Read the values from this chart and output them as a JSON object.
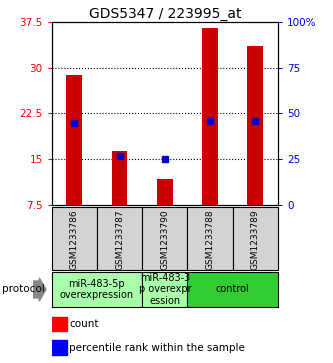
{
  "title": "GDS5347 / 223995_at",
  "samples": [
    "GSM1233786",
    "GSM1233787",
    "GSM1233790",
    "GSM1233788",
    "GSM1233789"
  ],
  "count_values": [
    28.8,
    16.3,
    11.8,
    36.5,
    33.5
  ],
  "percentile_values": [
    45.0,
    27.0,
    25.0,
    46.0,
    46.0
  ],
  "ylim_left": [
    7.5,
    37.5
  ],
  "ylim_right": [
    0,
    100
  ],
  "yticks_left": [
    7.5,
    15.0,
    22.5,
    30.0,
    37.5
  ],
  "yticks_right": [
    0,
    25,
    50,
    75,
    100
  ],
  "ytick_labels_left": [
    "7.5",
    "15",
    "22.5",
    "30",
    "37.5"
  ],
  "ytick_labels_right": [
    "0",
    "25",
    "50",
    "75",
    "100%"
  ],
  "bar_bottom": 7.5,
  "bar_width": 0.35,
  "bar_color": "#cc0000",
  "percentile_color": "#0000cc",
  "percentile_marker_size": 5,
  "grid_linestyle": ":",
  "grid_linewidth": 0.8,
  "protocol_groups": [
    {
      "label": "miR-483-5p\noverexpression",
      "start": 0,
      "end": 1,
      "color": "#aaffaa"
    },
    {
      "label": "miR-483-3\np overexpr\nession",
      "start": 2,
      "end": 2,
      "color": "#aaffaa"
    },
    {
      "label": "control",
      "start": 3,
      "end": 4,
      "color": "#33cc33"
    }
  ],
  "protocol_label": "protocol",
  "legend_count_label": "count",
  "legend_percentile_label": "percentile rank within the sample",
  "title_fontsize": 10,
  "tick_fontsize": 7.5,
  "sample_label_fontsize": 6.5,
  "protocol_fontsize": 7.5,
  "legend_fontsize": 7.5
}
